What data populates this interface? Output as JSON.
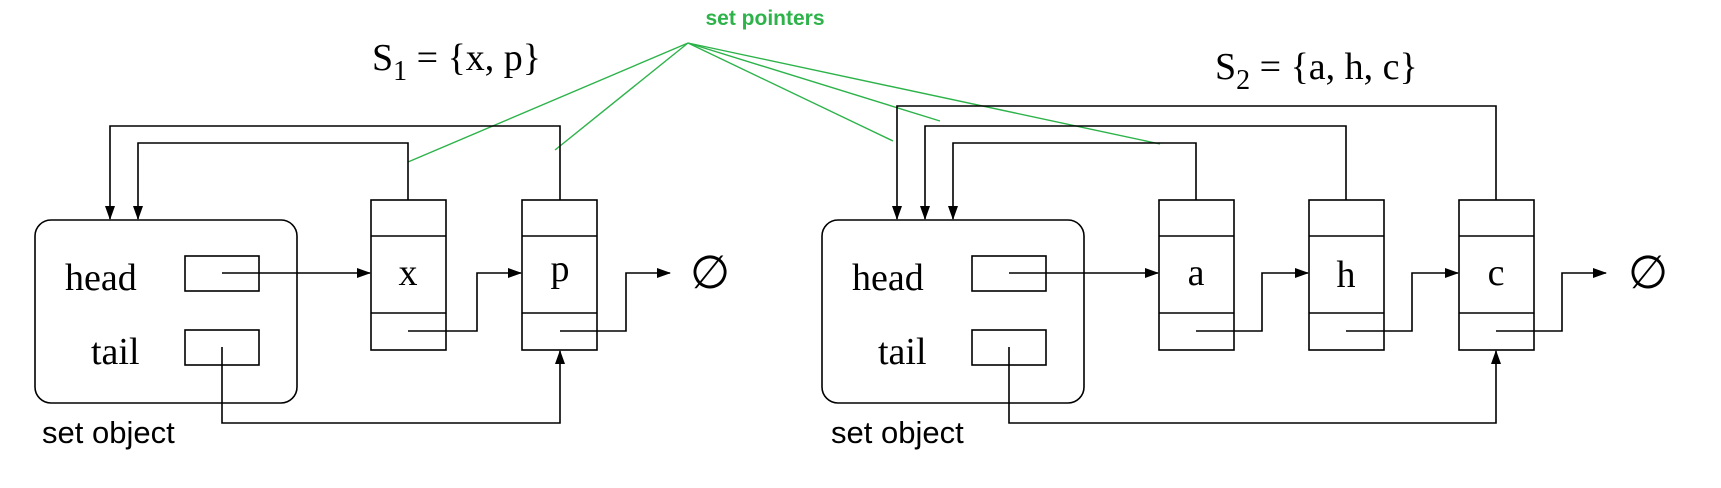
{
  "annotation": {
    "text": "set pointers",
    "color": "#2db34a"
  },
  "sets": [
    {
      "title_prefix": "S",
      "title_sub": "1",
      "title_rest": " = {x, p}",
      "object_caption": "set object",
      "head_label": "head",
      "tail_label": "tail",
      "members": [
        "x",
        "p"
      ]
    },
    {
      "title_prefix": "S",
      "title_sub": "2",
      "title_rest": " = {a, h, c}",
      "object_caption": "set object",
      "head_label": "head",
      "tail_label": "tail",
      "members": [
        "a",
        "h",
        "c"
      ]
    }
  ],
  "null_symbol": "∅",
  "colors": {
    "lines": "#000000",
    "annotation": "#2db34a",
    "background": "#ffffff"
  }
}
